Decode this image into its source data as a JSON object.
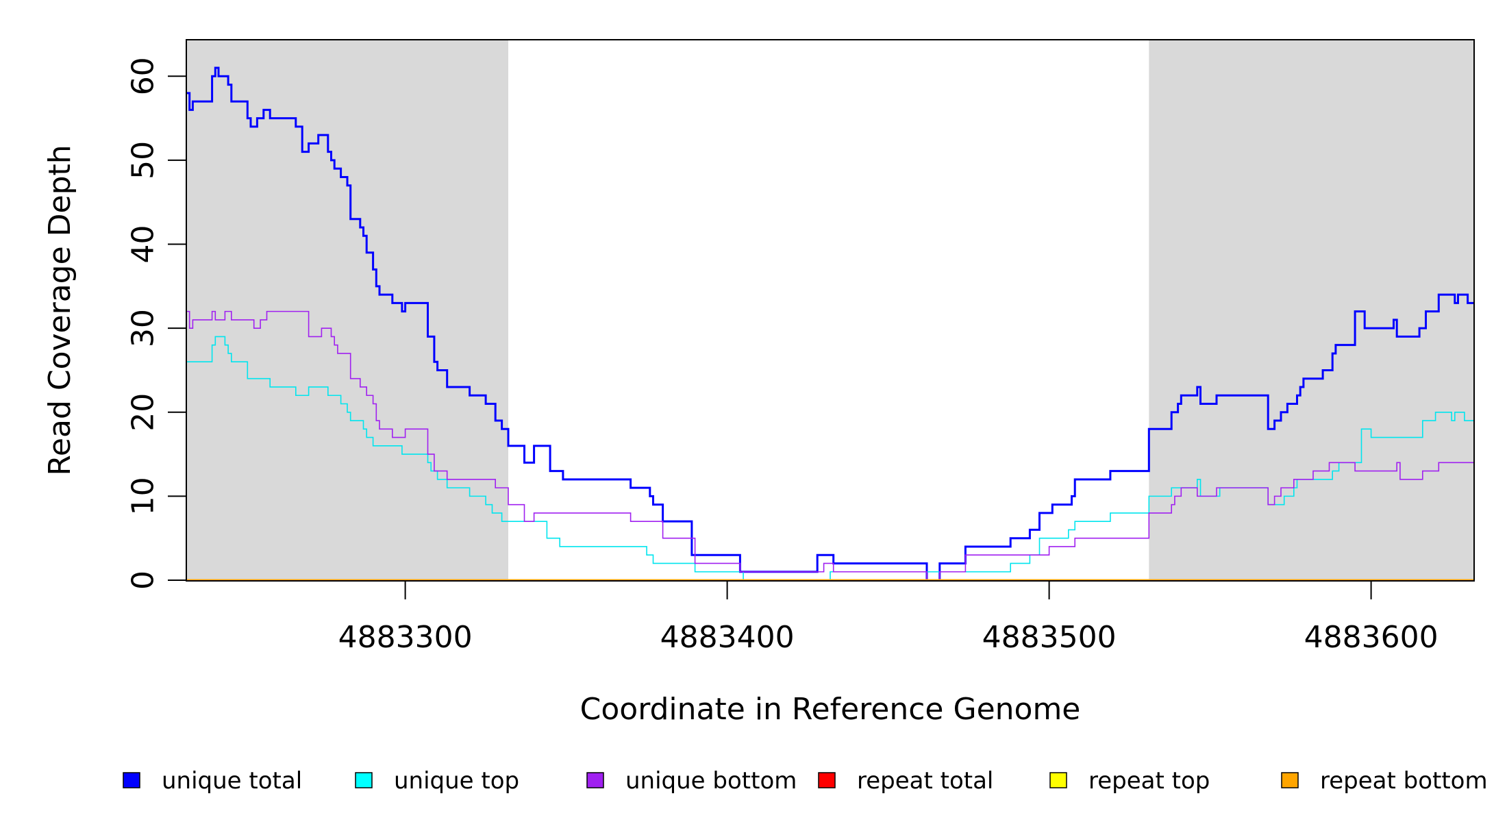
{
  "chart_data": {
    "type": "line",
    "title": "",
    "xlabel": "Coordinate in Reference Genome",
    "ylabel": "Read Coverage Depth",
    "xlim": [
      4883232,
      4883632
    ],
    "ylim": [
      0,
      65
    ],
    "x_ticks": [
      4883300,
      4883400,
      4883500,
      4883600
    ],
    "x_tick_labels": [
      "4883300",
      "4883400",
      "4883500",
      "4883600"
    ],
    "y_ticks": [
      0,
      10,
      20,
      30,
      40,
      50,
      60
    ],
    "y_tick_labels": [
      "0",
      "10",
      "20",
      "30",
      "40",
      "50",
      "60"
    ],
    "shaded_regions": [
      [
        4883232,
        4883332
      ],
      [
        4883531,
        4883632
      ]
    ],
    "series": [
      {
        "name": "unique total",
        "color": "#0000ff",
        "width": 3,
        "points": [
          [
            4883232,
            58
          ],
          [
            4883233,
            56
          ],
          [
            4883234,
            57
          ],
          [
            4883240,
            60
          ],
          [
            4883241,
            61
          ],
          [
            4883242,
            60
          ],
          [
            4883245,
            59
          ],
          [
            4883246,
            57
          ],
          [
            4883251,
            55
          ],
          [
            4883252,
            54
          ],
          [
            4883254,
            55
          ],
          [
            4883256,
            56
          ],
          [
            4883258,
            55
          ],
          [
            4883266,
            54
          ],
          [
            4883268,
            51
          ],
          [
            4883270,
            52
          ],
          [
            4883273,
            53
          ],
          [
            4883276,
            51
          ],
          [
            4883277,
            50
          ],
          [
            4883278,
            49
          ],
          [
            4883280,
            48
          ],
          [
            4883282,
            47
          ],
          [
            4883283,
            43
          ],
          [
            4883286,
            42
          ],
          [
            4883287,
            41
          ],
          [
            4883288,
            39
          ],
          [
            4883290,
            37
          ],
          [
            4883291,
            35
          ],
          [
            4883292,
            34
          ],
          [
            4883296,
            33
          ],
          [
            4883299,
            32
          ],
          [
            4883300,
            33
          ],
          [
            4883307,
            29
          ],
          [
            4883309,
            26
          ],
          [
            4883310,
            25
          ],
          [
            4883313,
            23
          ],
          [
            4883320,
            22
          ],
          [
            4883325,
            21
          ],
          [
            4883328,
            19
          ],
          [
            4883330,
            18
          ],
          [
            4883332,
            16
          ],
          [
            4883337,
            14
          ],
          [
            4883340,
            16
          ],
          [
            4883345,
            13
          ],
          [
            4883349,
            12
          ],
          [
            4883370,
            11
          ],
          [
            4883376,
            10
          ],
          [
            4883377,
            9
          ],
          [
            4883380,
            7
          ],
          [
            4883389,
            3
          ],
          [
            4883404,
            1
          ],
          [
            4883428,
            3
          ],
          [
            4883433,
            2
          ],
          [
            4883462,
            0
          ],
          [
            4883466,
            2
          ],
          [
            4883474,
            4
          ],
          [
            4883488,
            5
          ],
          [
            4883494,
            6
          ],
          [
            4883497,
            8
          ],
          [
            4883501,
            9
          ],
          [
            4883507,
            10
          ],
          [
            4883508,
            12
          ],
          [
            4883519,
            13
          ],
          [
            4883531,
            18
          ],
          [
            4883538,
            20
          ],
          [
            4883540,
            21
          ],
          [
            4883541,
            22
          ],
          [
            4883546,
            23
          ],
          [
            4883547,
            21
          ],
          [
            4883552,
            22
          ],
          [
            4883568,
            18
          ],
          [
            4883570,
            19
          ],
          [
            4883572,
            20
          ],
          [
            4883574,
            21
          ],
          [
            4883577,
            22
          ],
          [
            4883578,
            23
          ],
          [
            4883579,
            24
          ],
          [
            4883585,
            25
          ],
          [
            4883588,
            27
          ],
          [
            4883589,
            28
          ],
          [
            4883595,
            32
          ],
          [
            4883598,
            30
          ],
          [
            4883607,
            31
          ],
          [
            4883608,
            29
          ],
          [
            4883615,
            30
          ],
          [
            4883617,
            32
          ],
          [
            4883621,
            34
          ],
          [
            4883626,
            33
          ],
          [
            4883627,
            34
          ],
          [
            4883630,
            33
          ],
          [
            4883632,
            33
          ]
        ]
      },
      {
        "name": "unique top",
        "color": "#00e5ee",
        "width": 1.6,
        "points": [
          [
            4883232,
            26
          ],
          [
            4883240,
            28
          ],
          [
            4883241,
            29
          ],
          [
            4883244,
            28
          ],
          [
            4883245,
            27
          ],
          [
            4883246,
            26
          ],
          [
            4883251,
            24
          ],
          [
            4883258,
            23
          ],
          [
            4883266,
            22
          ],
          [
            4883270,
            23
          ],
          [
            4883276,
            22
          ],
          [
            4883280,
            21
          ],
          [
            4883282,
            20
          ],
          [
            4883283,
            19
          ],
          [
            4883287,
            18
          ],
          [
            4883288,
            17
          ],
          [
            4883290,
            16
          ],
          [
            4883299,
            15
          ],
          [
            4883307,
            14
          ],
          [
            4883308,
            13
          ],
          [
            4883310,
            12
          ],
          [
            4883313,
            11
          ],
          [
            4883320,
            10
          ],
          [
            4883325,
            9
          ],
          [
            4883327,
            8
          ],
          [
            4883330,
            7
          ],
          [
            4883344,
            5
          ],
          [
            4883348,
            4
          ],
          [
            4883375,
            3
          ],
          [
            4883377,
            2
          ],
          [
            4883390,
            1
          ],
          [
            4883405,
            0
          ],
          [
            4883432,
            1
          ],
          [
            4883474,
            1
          ],
          [
            4883488,
            2
          ],
          [
            4883494,
            3
          ],
          [
            4883497,
            5
          ],
          [
            4883506,
            6
          ],
          [
            4883508,
            7
          ],
          [
            4883519,
            8
          ],
          [
            4883531,
            10
          ],
          [
            4883538,
            11
          ],
          [
            4883546,
            12
          ],
          [
            4883547,
            10
          ],
          [
            4883553,
            11
          ],
          [
            4883568,
            9
          ],
          [
            4883573,
            10
          ],
          [
            4883576,
            11
          ],
          [
            4883577,
            12
          ],
          [
            4883588,
            13
          ],
          [
            4883590,
            14
          ],
          [
            4883597,
            18
          ],
          [
            4883600,
            17
          ],
          [
            4883616,
            19
          ],
          [
            4883620,
            20
          ],
          [
            4883625,
            19
          ],
          [
            4883626,
            20
          ],
          [
            4883629,
            19
          ],
          [
            4883632,
            19
          ]
        ]
      },
      {
        "name": "unique bottom",
        "color": "#a020f0",
        "width": 1.6,
        "points": [
          [
            4883232,
            32
          ],
          [
            4883233,
            30
          ],
          [
            4883234,
            31
          ],
          [
            4883240,
            32
          ],
          [
            4883241,
            31
          ],
          [
            4883244,
            32
          ],
          [
            4883246,
            31
          ],
          [
            4883253,
            30
          ],
          [
            4883255,
            31
          ],
          [
            4883257,
            32
          ],
          [
            4883270,
            29
          ],
          [
            4883274,
            30
          ],
          [
            4883277,
            29
          ],
          [
            4883278,
            28
          ],
          [
            4883279,
            27
          ],
          [
            4883283,
            24
          ],
          [
            4883286,
            23
          ],
          [
            4883288,
            22
          ],
          [
            4883290,
            21
          ],
          [
            4883291,
            19
          ],
          [
            4883292,
            18
          ],
          [
            4883296,
            17
          ],
          [
            4883300,
            18
          ],
          [
            4883307,
            15
          ],
          [
            4883309,
            13
          ],
          [
            4883313,
            12
          ],
          [
            4883328,
            11
          ],
          [
            4883332,
            9
          ],
          [
            4883337,
            7
          ],
          [
            4883340,
            8
          ],
          [
            4883370,
            7
          ],
          [
            4883380,
            5
          ],
          [
            4883390,
            2
          ],
          [
            4883404,
            1
          ],
          [
            4883430,
            2
          ],
          [
            4883433,
            1
          ],
          [
            4883462,
            0
          ],
          [
            4883466,
            1
          ],
          [
            4883474,
            3
          ],
          [
            4883500,
            4
          ],
          [
            4883508,
            5
          ],
          [
            4883531,
            8
          ],
          [
            4883538,
            9
          ],
          [
            4883539,
            10
          ],
          [
            4883541,
            11
          ],
          [
            4883546,
            10
          ],
          [
            4883552,
            11
          ],
          [
            4883568,
            9
          ],
          [
            4883570,
            10
          ],
          [
            4883572,
            11
          ],
          [
            4883576,
            12
          ],
          [
            4883582,
            13
          ],
          [
            4883587,
            14
          ],
          [
            4883595,
            13
          ],
          [
            4883608,
            14
          ],
          [
            4883609,
            12
          ],
          [
            4883616,
            13
          ],
          [
            4883621,
            14
          ],
          [
            4883632,
            14
          ]
        ]
      },
      {
        "name": "repeat total",
        "color": "#ff0000",
        "width": 2,
        "points": [
          [
            4883232,
            0
          ],
          [
            4883632,
            0
          ]
        ]
      },
      {
        "name": "repeat top",
        "color": "#ffff00",
        "width": 2,
        "points": [
          [
            4883232,
            0
          ],
          [
            4883632,
            0
          ]
        ]
      },
      {
        "name": "repeat bottom",
        "color": "#ffa500",
        "width": 3,
        "points": [
          [
            4883232,
            0
          ],
          [
            4883632,
            0
          ]
        ]
      }
    ],
    "legend": {
      "position": "bottom",
      "items": [
        {
          "label": "unique total",
          "color": "#0000ff"
        },
        {
          "label": "unique top",
          "color": "#00ffff"
        },
        {
          "label": "unique bottom",
          "color": "#a020f0"
        },
        {
          "label": "repeat total",
          "color": "#ff0000"
        },
        {
          "label": "repeat top",
          "color": "#ffff00"
        },
        {
          "label": "repeat bottom",
          "color": "#ffa500"
        }
      ]
    },
    "colors": {
      "shade": "#d9d9d9",
      "frame": "#000000"
    }
  }
}
